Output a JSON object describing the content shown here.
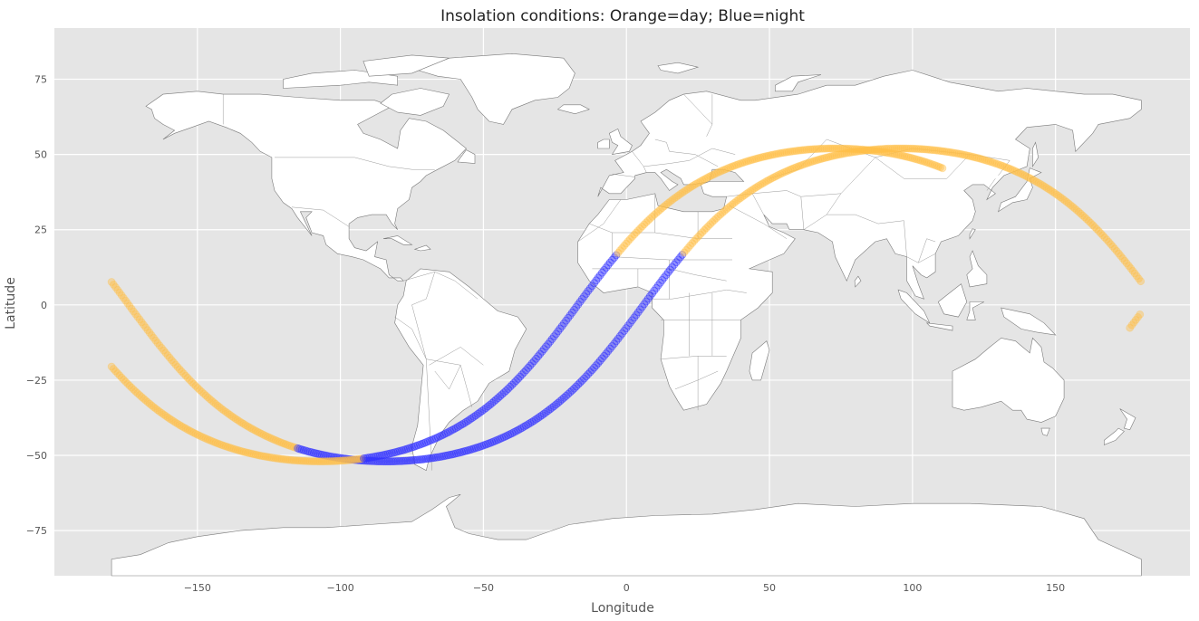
{
  "chart_data": {
    "type": "scatter",
    "title": "Insolation conditions: Orange=day; Blue=night",
    "xlabel": "Longitude",
    "ylabel": "Latitude",
    "xlim": [
      -200,
      197
    ],
    "ylim": [
      -90,
      92
    ],
    "xticks": [
      -150,
      -100,
      -50,
      0,
      50,
      100,
      150
    ],
    "yticks": [
      -75,
      -50,
      -25,
      0,
      25,
      50,
      75
    ],
    "xtick_labels": [
      "−150",
      "−100",
      "−50",
      "0",
      "50",
      "100",
      "150"
    ],
    "ytick_labels": [
      "−75",
      "−50",
      "−25",
      "0",
      "25",
      "50",
      "75"
    ],
    "grid": true,
    "legend": "none",
    "background": "world map",
    "colors": {
      "day": "#ffbf47",
      "night": "#3333ff",
      "axes_bg": "#e5e5e5"
    },
    "tracks": [
      {
        "lon_start": -180,
        "lon_end": 180,
        "inclination": 52,
        "ascending_node_lon": 6,
        "day_range": [
          [
            -180,
            -115
          ],
          [
            20,
            180
          ]
        ],
        "night_range": [
          [
            -115,
            20
          ]
        ]
      },
      {
        "lon_start": -180,
        "lon_end": 111,
        "inclination": 52,
        "ascending_node_lon": -17,
        "day_range": [
          [
            -180,
            -92
          ],
          [
            -3,
            111
          ]
        ],
        "night_range": [
          [
            -92,
            -3
          ]
        ]
      },
      {
        "lon_start": 176,
        "lon_end": 180,
        "inclination": 52,
        "ascending_node_lon": 182,
        "day_range": [
          [
            176,
            180
          ]
        ],
        "night_range": []
      }
    ]
  }
}
